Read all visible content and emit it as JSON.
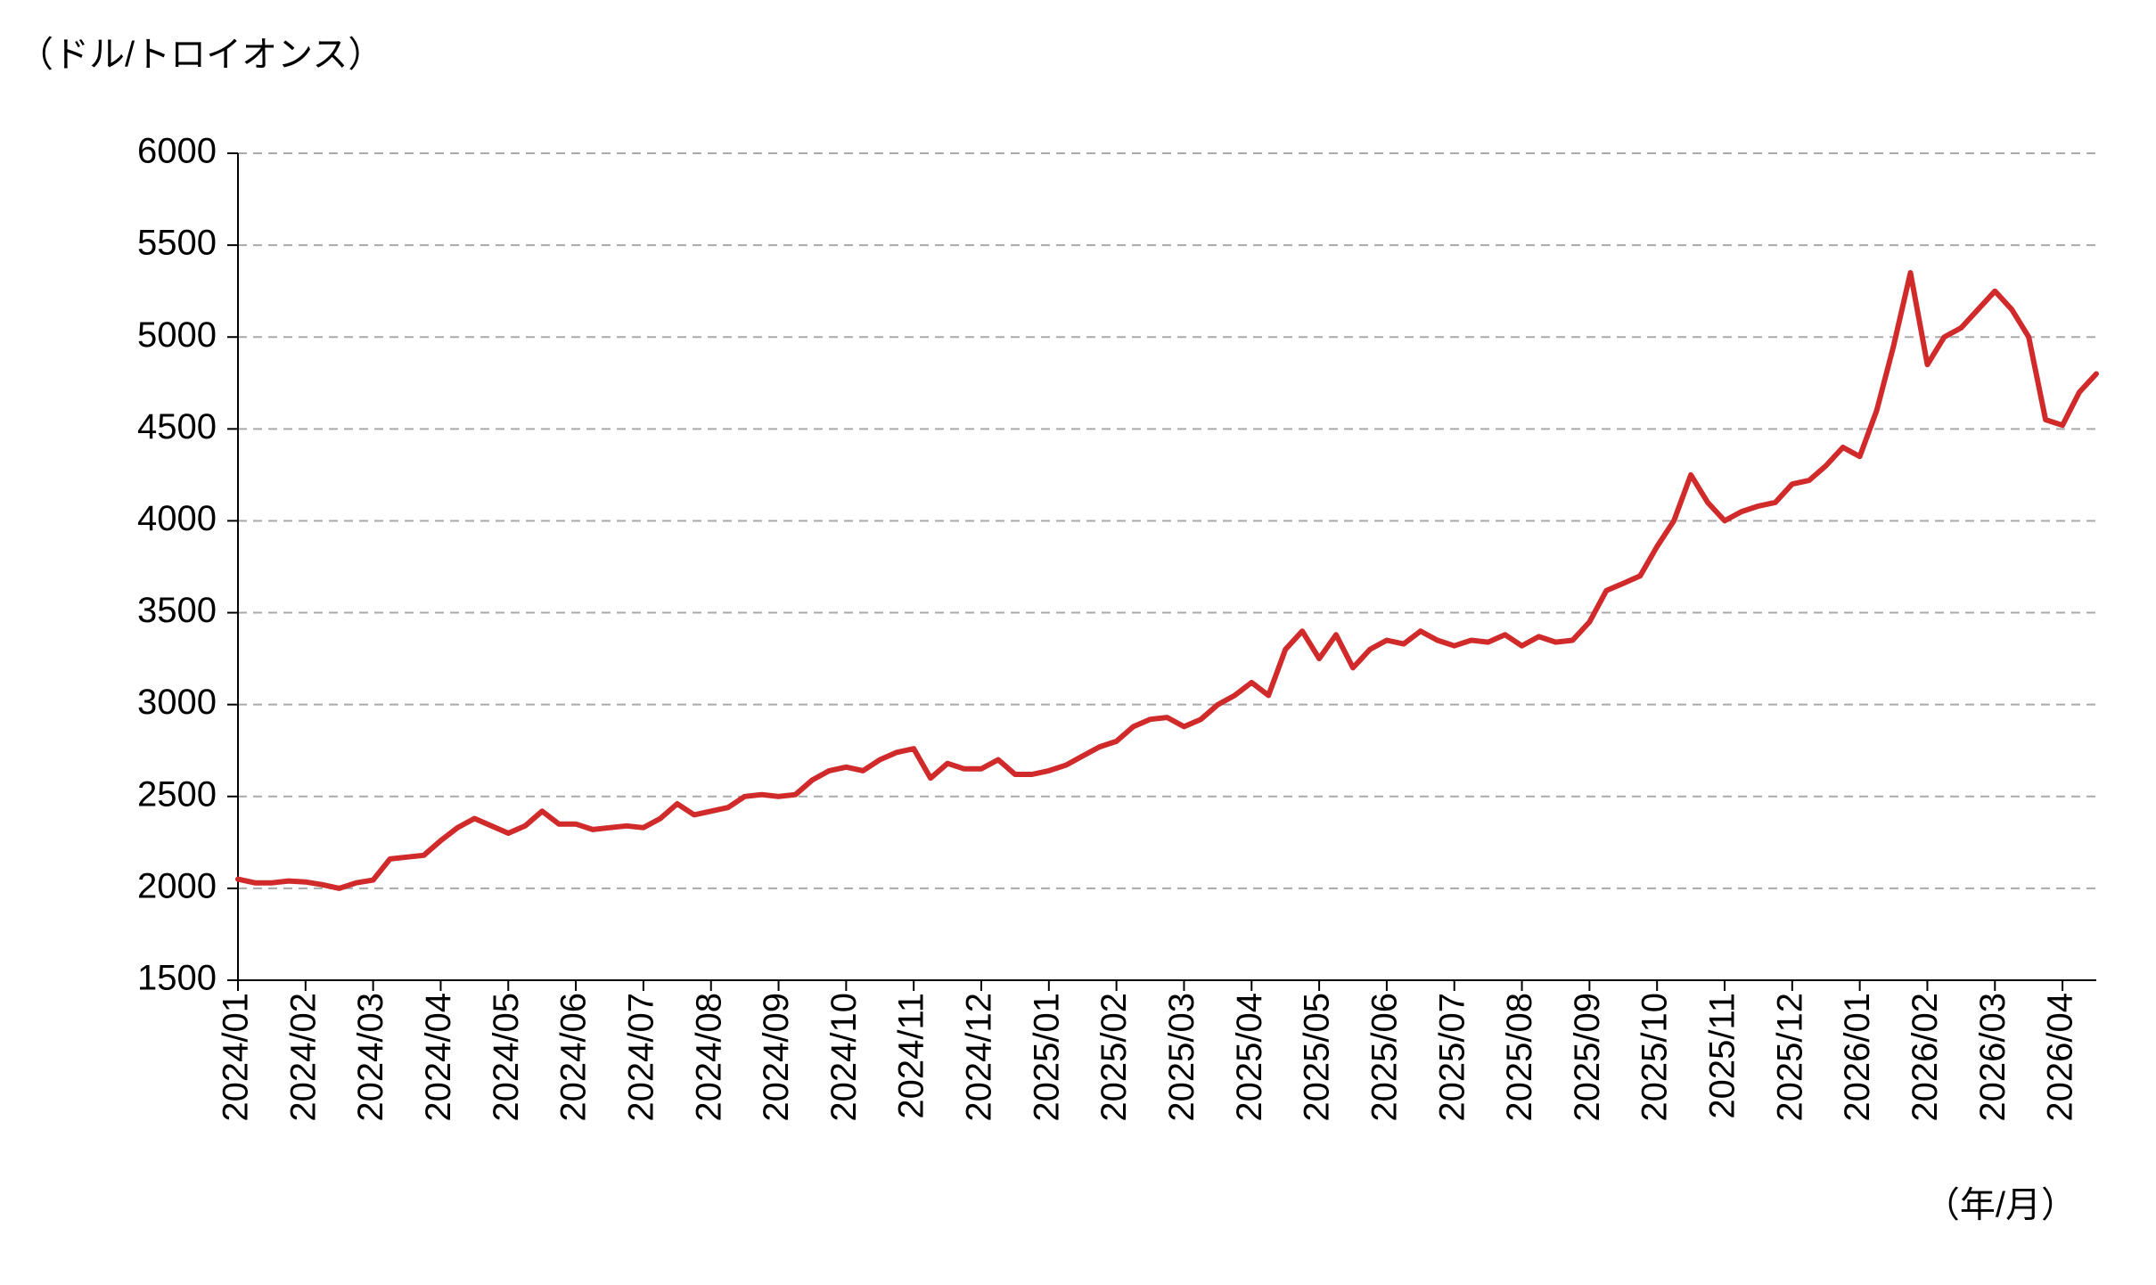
{
  "chart_data": {
    "type": "line",
    "y_label": "（ドル/トロイオンス）",
    "x_label": "（年/月）",
    "color": "#d02a2a",
    "grid": true,
    "ylim": [
      1500,
      6000
    ],
    "yticks": [
      1500,
      2000,
      2500,
      3000,
      3500,
      4000,
      4500,
      5000,
      5500,
      6000
    ],
    "categories": [
      "2024/01",
      null,
      null,
      null,
      "2024/02",
      null,
      null,
      null,
      "2024/03",
      null,
      null,
      null,
      "2024/04",
      null,
      null,
      null,
      "2024/05",
      null,
      null,
      null,
      "2024/06",
      null,
      null,
      null,
      "2024/07",
      null,
      null,
      null,
      "2024/08",
      null,
      null,
      null,
      "2024/09",
      null,
      null,
      null,
      "2024/10",
      null,
      null,
      null,
      "2024/11",
      null,
      null,
      null,
      "2024/12",
      null,
      null,
      null,
      "2025/01",
      null,
      null,
      null,
      "2025/02",
      null,
      null,
      null,
      "2025/03",
      null,
      null,
      null,
      "2025/04",
      null,
      null,
      null,
      "2025/05",
      null,
      null,
      null,
      "2025/06",
      null,
      null,
      null,
      "2025/07",
      null,
      null,
      null,
      "2025/08",
      null,
      null,
      null,
      "2025/09",
      null,
      null,
      null,
      "2025/10",
      null,
      null,
      null,
      "2025/11",
      null,
      null,
      null,
      "2025/12",
      null,
      null,
      null,
      "2026/01",
      null,
      null,
      null,
      "2026/02",
      null,
      null,
      null,
      "2026/03",
      null,
      null,
      null,
      "2026/04",
      null,
      null
    ],
    "values": [
      2050,
      2030,
      2030,
      2040,
      2035,
      2020,
      2000,
      2030,
      2045,
      2160,
      2170,
      2180,
      2260,
      2330,
      2380,
      2340,
      2300,
      2340,
      2420,
      2350,
      2350,
      2320,
      2330,
      2340,
      2330,
      2380,
      2460,
      2400,
      2420,
      2440,
      2500,
      2510,
      2500,
      2510,
      2590,
      2640,
      2660,
      2640,
      2700,
      2740,
      2760,
      2600,
      2680,
      2650,
      2650,
      2700,
      2620,
      2620,
      2640,
      2670,
      2720,
      2770,
      2800,
      2880,
      2920,
      2930,
      2880,
      2920,
      3000,
      3050,
      3120,
      3050,
      3300,
      3400,
      3250,
      3380,
      3200,
      3300,
      3350,
      3330,
      3400,
      3350,
      3320,
      3350,
      3340,
      3380,
      3320,
      3370,
      3340,
      3350,
      3450,
      3620,
      3660,
      3700,
      3860,
      4000,
      4250,
      4100,
      4000,
      4050,
      4080,
      4100,
      4200,
      4220,
      4300,
      4400,
      4350,
      4600,
      4950,
      5350,
      4850,
      5000,
      5050,
      5150,
      5250,
      5150,
      5000,
      4550,
      4520,
      4700,
      4800
    ]
  }
}
